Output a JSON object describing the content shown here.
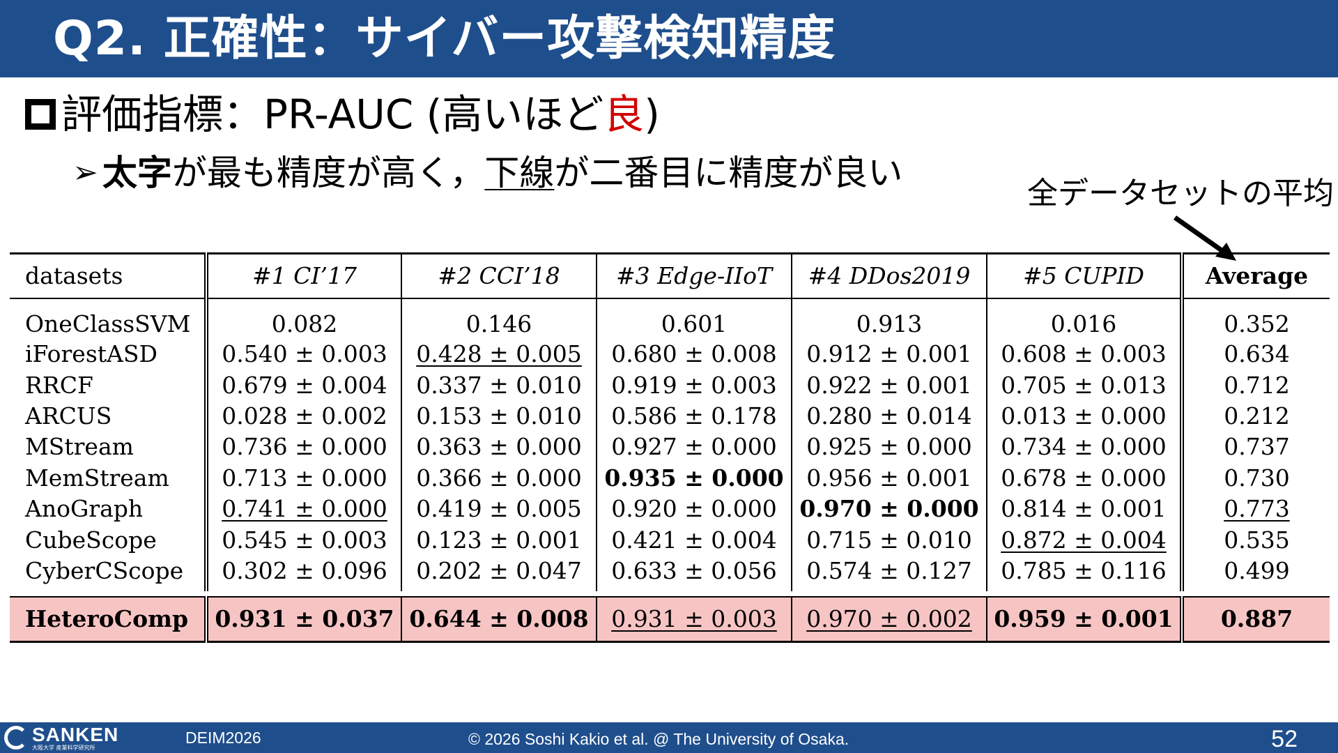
{
  "title": "Q2. 正確性：サイバー攻撃検知精度",
  "bullet1": {
    "prefix": "評価指標：PR-AUC (高いほど",
    "highlight": "良",
    "suffix": ")"
  },
  "bullet2": {
    "bold": "太字",
    "mid": "が最も精度が高く，",
    "underlined": "下線",
    "suffix": "が二番目に精度が良い"
  },
  "annotation": "全データセットの平均",
  "table": {
    "headers": [
      "datasets",
      "#1 CI’17",
      "#2 CCI’18",
      "#3 Edge-IIoT",
      "#4 DDos2019",
      "#5 CUPID",
      "Average"
    ],
    "rows": [
      {
        "name": "OneClassSVM",
        "cells": [
          "0.082",
          "0.146",
          "0.601",
          "0.913",
          "0.016"
        ],
        "avg": "0.352"
      },
      {
        "name": "iForestASD",
        "cells": [
          "0.540 ± 0.003",
          "0.428 ± 0.005",
          "0.680 ± 0.008",
          "0.912 ± 0.001",
          "0.608 ± 0.003"
        ],
        "avg": "0.634"
      },
      {
        "name": "RRCF",
        "cells": [
          "0.679 ± 0.004",
          "0.337 ± 0.010",
          "0.919 ± 0.003",
          "0.922 ± 0.001",
          "0.705 ± 0.013"
        ],
        "avg": "0.712"
      },
      {
        "name": "ARCUS",
        "cells": [
          "0.028 ± 0.002",
          "0.153 ± 0.010",
          "0.586 ± 0.178",
          "0.280 ± 0.014",
          "0.013 ± 0.000"
        ],
        "avg": "0.212"
      },
      {
        "name": "MStream",
        "cells": [
          "0.736 ± 0.000",
          "0.363 ± 0.000",
          "0.927 ± 0.000",
          "0.925 ± 0.000",
          "0.734 ± 0.000"
        ],
        "avg": "0.737"
      },
      {
        "name": "MemStream",
        "cells": [
          "0.713 ± 0.000",
          "0.366 ± 0.000",
          "0.935 ± 0.000",
          "0.956 ± 0.001",
          "0.678 ± 0.000"
        ],
        "avg": "0.730"
      },
      {
        "name": "AnoGraph",
        "cells": [
          "0.741 ± 0.000",
          "0.419 ± 0.005",
          "0.920 ± 0.000",
          "0.970 ± 0.000",
          "0.814 ± 0.001"
        ],
        "avg": "0.773"
      },
      {
        "name": "CubeScope",
        "cells": [
          "0.545 ± 0.003",
          "0.123 ± 0.001",
          "0.421 ± 0.004",
          "0.715 ± 0.010",
          "0.872 ± 0.004"
        ],
        "avg": "0.535"
      },
      {
        "name": "CyberCScope",
        "cells": [
          "0.302 ± 0.096",
          "0.202 ± 0.047",
          "0.633 ± 0.056",
          "0.574 ± 0.127",
          "0.785 ± 0.116"
        ],
        "avg": "0.499"
      }
    ],
    "highlight_row": {
      "name": "HeteroComp",
      "cells": [
        "0.931 ± 0.037",
        "0.644 ± 0.008",
        "0.931 ± 0.003",
        "0.970 ± 0.002",
        "0.959 ± 0.001"
      ],
      "avg": "0.887",
      "color": "#f7c4c4"
    }
  },
  "footer": {
    "logo": "SANKEN",
    "logo_sub": "大阪大学 産業科学研究所",
    "conference": "DEIM2026",
    "copyright": "© 2026 Soshi Kakio et al. @ The University of Osaka.",
    "page": "52"
  },
  "colors": {
    "brand": "#1f4e8c",
    "accent": "#d10000"
  }
}
